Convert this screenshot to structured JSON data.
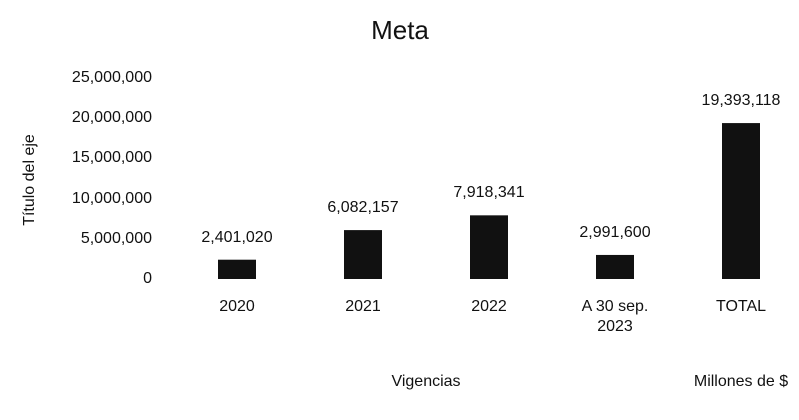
{
  "chart_data": {
    "type": "bar",
    "title": "Meta",
    "y_label": "Título del eje",
    "x_label": "Vigencias",
    "annotation": "Millones de $",
    "categories": [
      "2020",
      "2021",
      "2022",
      "A 30 sep. 2023",
      "TOTAL"
    ],
    "values": [
      2401020,
      6082157,
      7918341,
      2991600,
      19393118
    ],
    "value_labels": [
      "2,401,020",
      "6,082,157",
      "7,918,341",
      "2,991,600",
      "19,393,118"
    ],
    "color": "#111111",
    "ylim": [
      0,
      25000000
    ],
    "yticks": [
      0,
      {
        "value": 5000000,
        "label": "5,000,000"
      },
      {
        "value": 10000000,
        "label": "10,000,000"
      },
      {
        "value": 15000000,
        "label": "15,000,000"
      },
      {
        "value": 20000000,
        "label": "20,000,000"
      },
      {
        "value": 25000000,
        "label": "25,000,000"
      }
    ],
    "grid": false
  }
}
